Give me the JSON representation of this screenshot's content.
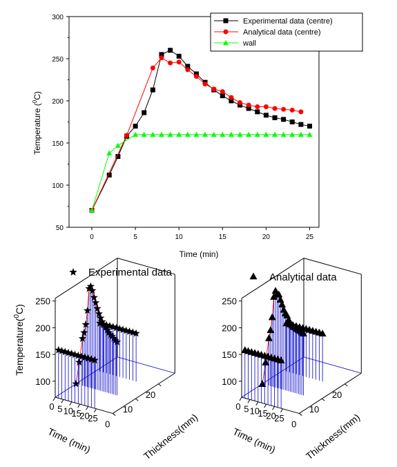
{
  "chart_data": [
    {
      "type": "line",
      "xlabel": "Time (min)",
      "ylabel_main": "Temperature (",
      "ylabel_sup": "0",
      "ylabel_end": "C)",
      "xlim": [
        -2,
        27
      ],
      "ylim": [
        50,
        300
      ],
      "xticks": [
        0,
        5,
        10,
        15,
        20,
        25
      ],
      "yticks": [
        50,
        100,
        150,
        200,
        250,
        300
      ],
      "legend_position": "top-right",
      "series": [
        {
          "name": "Experimental data (centre)",
          "color": "#000000",
          "marker": "square",
          "x": [
            0,
            2,
            3,
            4,
            5,
            6,
            7,
            8,
            9,
            10,
            11,
            12,
            13,
            14,
            15,
            16,
            17,
            18,
            19,
            20,
            21,
            22,
            23,
            24,
            25
          ],
          "y": [
            70,
            112,
            134,
            158,
            170,
            186,
            213,
            255,
            260,
            253,
            241,
            232,
            222,
            213,
            206,
            200,
            195,
            191,
            187,
            183,
            180,
            178,
            175,
            172,
            170
          ]
        },
        {
          "name": "Analytical data (centre)",
          "color": "#ff0000",
          "marker": "circle",
          "x": [
            0,
            4,
            7,
            8,
            9,
            10,
            11,
            12,
            13,
            14,
            15,
            16,
            17,
            18,
            19,
            20,
            21,
            22,
            23,
            24
          ],
          "y": [
            70,
            159,
            239,
            251,
            245,
            246,
            237,
            229,
            220,
            214,
            211,
            204,
            198,
            195,
            193,
            193,
            191,
            190,
            189,
            187
          ]
        },
        {
          "name": "wall",
          "color": "#00ff00",
          "marker": "triangle",
          "x": [
            0,
            2,
            3,
            5,
            6,
            7,
            8,
            9,
            10,
            11,
            12,
            13,
            14,
            15,
            16,
            17,
            18,
            19,
            20,
            21,
            22,
            23,
            24,
            25
          ],
          "y": [
            70,
            138,
            147,
            160,
            160,
            160,
            160,
            160,
            160,
            160,
            160,
            160,
            160,
            160,
            160,
            160,
            160,
            160,
            160,
            160,
            160,
            160,
            160,
            160
          ]
        }
      ]
    },
    {
      "type": "line",
      "legend_label": "Experimental data",
      "zlabel_main": "Temperature",
      "zlabel_sup": "0",
      "zlabel_end": "C)",
      "xlabel": "Time (min)",
      "ylabel": "Thickness(mm)",
      "zticks": [
        100,
        150,
        200,
        250
      ],
      "xticks": [
        0,
        5,
        10,
        15,
        20,
        25
      ],
      "yticks": [
        0,
        10,
        20
      ],
      "curves": [
        {
          "thickness": 10,
          "time": [
            0,
            2,
            4,
            5,
            6,
            7,
            8,
            9,
            10,
            11,
            12,
            13,
            14,
            15,
            16,
            17,
            18,
            19,
            20,
            21,
            22,
            23,
            24,
            25
          ],
          "temp": [
            70,
            112,
            158,
            170,
            186,
            213,
            255,
            260,
            253,
            241,
            232,
            222,
            213,
            206,
            200,
            195,
            191,
            187,
            183,
            180,
            178,
            175,
            172,
            170
          ]
        },
        {
          "thickness": 0,
          "time": [
            2,
            4,
            6,
            8,
            10,
            12,
            14,
            16,
            18,
            20,
            22,
            24
          ],
          "temp": [
            160,
            160,
            160,
            160,
            160,
            160,
            160,
            160,
            160,
            160,
            160,
            160
          ]
        },
        {
          "thickness": 20,
          "time": [
            2,
            4,
            6,
            8,
            10,
            12,
            14,
            16,
            18,
            20,
            22,
            24
          ],
          "temp": [
            160,
            160,
            160,
            160,
            160,
            160,
            160,
            160,
            160,
            160,
            160,
            160
          ]
        }
      ]
    },
    {
      "type": "line",
      "legend_label": "Analytical data",
      "xlabel": "Time (min)",
      "ylabel": "Thickness(mm)",
      "zticks": [
        100,
        150,
        200,
        250
      ],
      "xticks": [
        0,
        5,
        10,
        15,
        20,
        25
      ],
      "yticks": [
        0,
        10,
        20
      ],
      "curves": [
        {
          "thickness": 10,
          "time": [
            0,
            2,
            4,
            5,
            6,
            7,
            8,
            9,
            10,
            11,
            12,
            13,
            14,
            15,
            16,
            17,
            18,
            19,
            20,
            21,
            22,
            23,
            24,
            25
          ],
          "temp": [
            70,
            112,
            159,
            175,
            200,
            239,
            251,
            245,
            246,
            237,
            229,
            220,
            214,
            211,
            204,
            198,
            195,
            193,
            193,
            191,
            190,
            189,
            187,
            186
          ]
        },
        {
          "thickness": 0,
          "time": [
            2,
            4,
            6,
            8,
            10,
            12,
            14,
            16,
            18,
            20,
            22,
            24
          ],
          "temp": [
            160,
            160,
            160,
            160,
            160,
            160,
            160,
            160,
            160,
            160,
            160,
            160
          ]
        },
        {
          "thickness": 20,
          "time": [
            2,
            4,
            6,
            8,
            10,
            12,
            14,
            16,
            18,
            20,
            22,
            24
          ],
          "temp": [
            160,
            160,
            160,
            160,
            160,
            160,
            160,
            160,
            160,
            160,
            160,
            160
          ]
        }
      ]
    }
  ]
}
